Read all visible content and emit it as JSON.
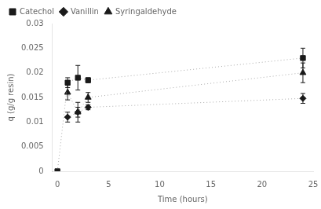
{
  "chart_data": {
    "type": "line",
    "xlabel": "Time (hours)",
    "ylabel": "q (g/g resin)",
    "xlim": [
      -0.5,
      25
    ],
    "ylim": [
      0,
      0.03
    ],
    "xticks": [
      0,
      5,
      10,
      15,
      20,
      25
    ],
    "yticks": [
      0,
      0.005,
      0.01,
      0.015,
      0.02,
      0.025,
      0.03
    ],
    "grid": false,
    "legend": "upper left",
    "series": [
      {
        "name": "Catechol",
        "color": "#1a1a1a",
        "line_color": "#aaaaaa",
        "marker": "square",
        "line_style": "dotted",
        "x": [
          0,
          1,
          2,
          3,
          24
        ],
        "values": [
          0.0,
          0.018,
          0.019,
          0.0185,
          0.023
        ],
        "yerr": [
          0.0,
          0.001,
          0.0025,
          0.0005,
          0.002
        ]
      },
      {
        "name": "Vanillin",
        "color": "#1a1a1a",
        "line_color": "#aaaaaa",
        "marker": "diamond",
        "line_style": "dotted",
        "x": [
          1,
          2,
          3,
          24
        ],
        "values": [
          0.011,
          0.012,
          0.013,
          0.0148
        ],
        "yerr": [
          0.001,
          0.001,
          0.0005,
          0.001
        ]
      },
      {
        "name": "Syringaldehyde",
        "color": "#1a1a1a",
        "line_color": "#aaaaaa",
        "marker": "triangle",
        "line_style": "dotted",
        "x": [
          1,
          2,
          3,
          24
        ],
        "values": [
          0.016,
          0.012,
          0.015,
          0.02
        ],
        "yerr": [
          0.0015,
          0.002,
          0.001,
          0.002
        ]
      }
    ]
  }
}
